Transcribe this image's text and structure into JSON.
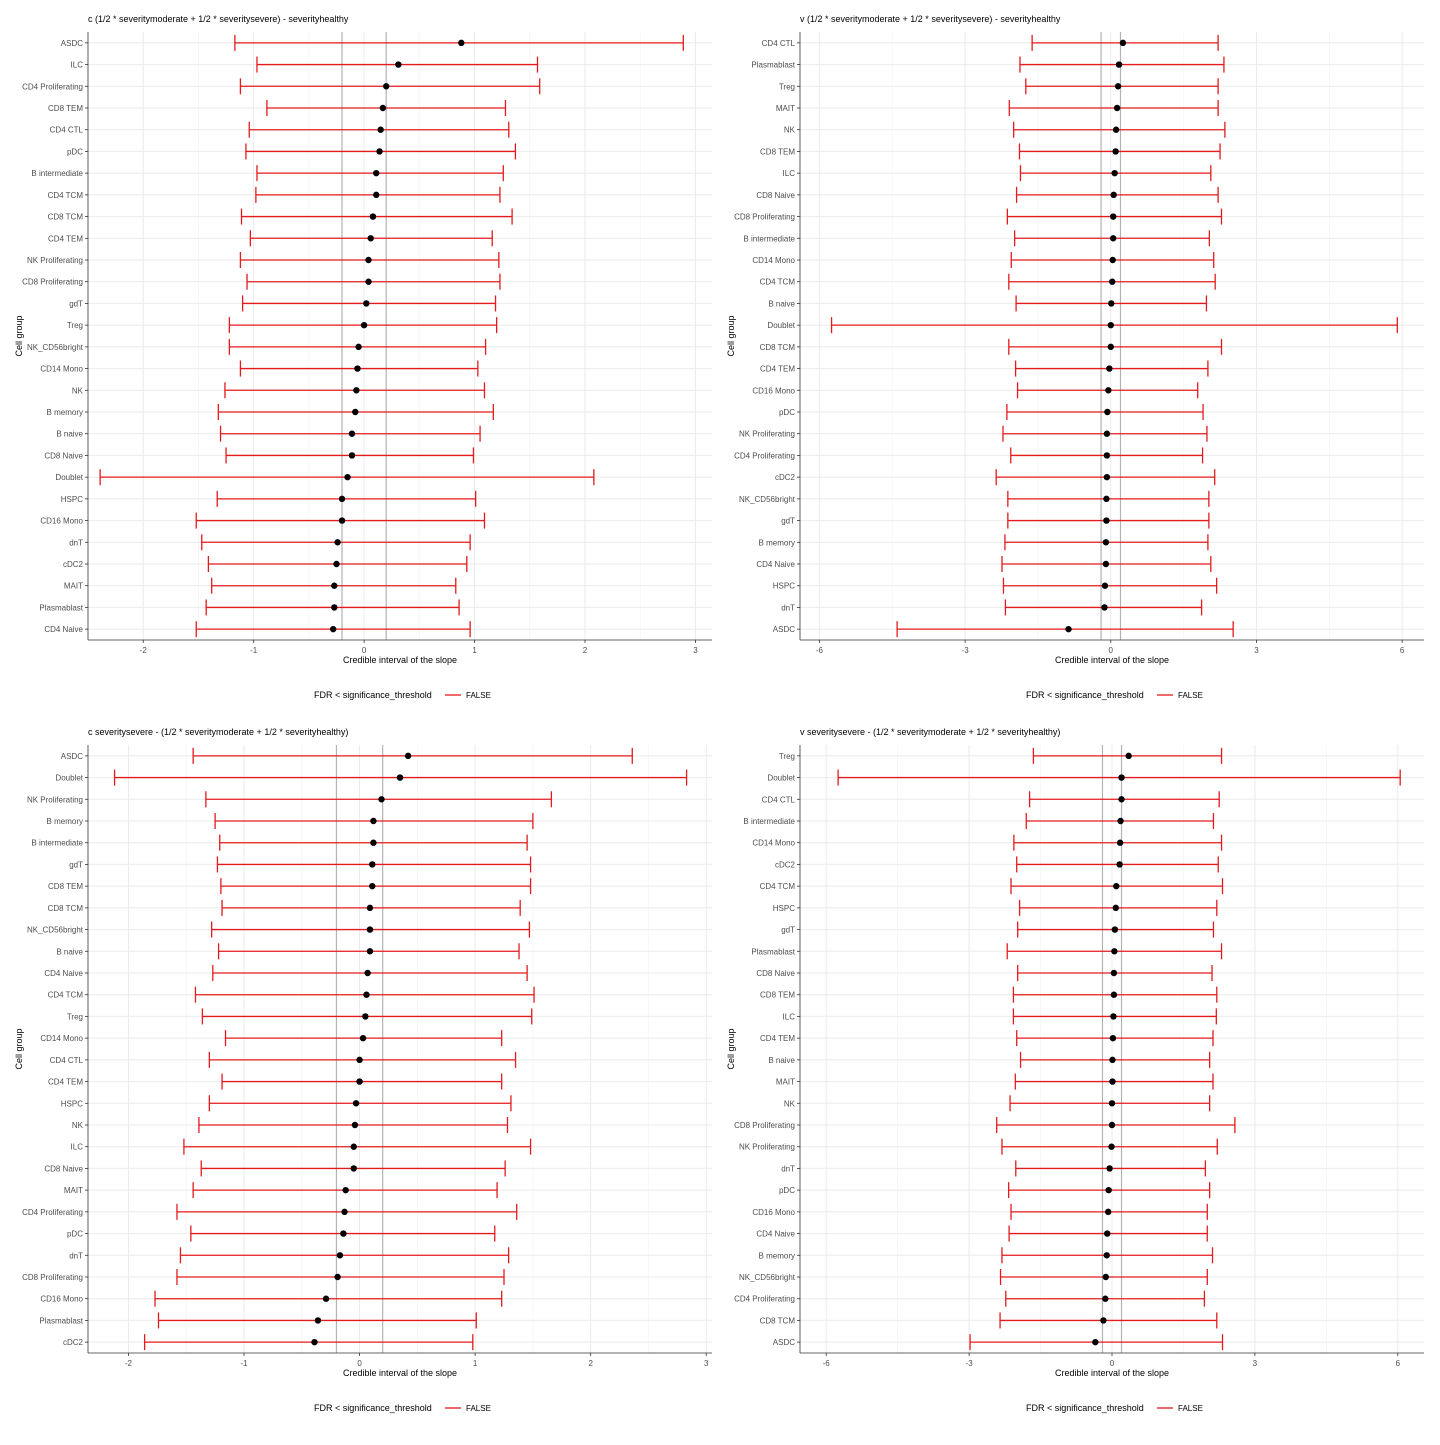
{
  "chart_data": [
    {
      "type": "errorbar",
      "title": "c (1/2 * severitymoderate + 1/2 * severitysevere) - severityhealthy",
      "xlabel": "Credible interval of the slope",
      "ylabel": "Cell group",
      "xlim": [
        -2.5,
        3.15
      ],
      "xticks": [
        -2,
        -1,
        0,
        1,
        2,
        3
      ],
      "vlines": [
        -0.2,
        0.2
      ],
      "grid": true,
      "legend": {
        "title": "FDR < significance_threshold",
        "entries": [
          {
            "label": "FALSE",
            "color": "#e41a1c"
          }
        ],
        "position": "bottom"
      },
      "categories": [
        "ASDC",
        "ILC",
        "CD4 Proliferating",
        "CD8 TEM",
        "CD4 CTL",
        "pDC",
        "B intermediate",
        "CD4 TCM",
        "CD8 TCM",
        "CD4 TEM",
        "NK Proliferating",
        "CD8 Proliferating",
        "gdT",
        "Treg",
        "NK_CD56bright",
        "CD14 Mono",
        "NK",
        "B memory",
        "B naive",
        "CD8 Naive",
        "Doublet",
        "HSPC",
        "CD16 Mono",
        "dnT",
        "cDC2",
        "MAIT",
        "Plasmablast",
        "CD4 Naive"
      ],
      "estimate": [
        0.88,
        0.31,
        0.2,
        0.17,
        0.15,
        0.14,
        0.11,
        0.11,
        0.08,
        0.06,
        0.04,
        0.04,
        0.02,
        0.0,
        -0.05,
        -0.06,
        -0.07,
        -0.08,
        -0.11,
        -0.11,
        -0.15,
        -0.2,
        -0.2,
        -0.24,
        -0.25,
        -0.27,
        -0.27,
        -0.28
      ],
      "lower": [
        -1.17,
        -0.97,
        -1.12,
        -0.88,
        -1.04,
        -1.07,
        -0.97,
        -0.98,
        -1.11,
        -1.03,
        -1.12,
        -1.06,
        -1.1,
        -1.22,
        -1.22,
        -1.12,
        -1.26,
        -1.32,
        -1.3,
        -1.25,
        -2.39,
        -1.33,
        -1.52,
        -1.47,
        -1.41,
        -1.38,
        -1.43,
        -1.52
      ],
      "upper": [
        2.89,
        1.57,
        1.59,
        1.28,
        1.31,
        1.37,
        1.26,
        1.23,
        1.34,
        1.16,
        1.22,
        1.23,
        1.19,
        1.2,
        1.1,
        1.03,
        1.09,
        1.17,
        1.05,
        0.99,
        2.08,
        1.01,
        1.09,
        0.96,
        0.93,
        0.83,
        0.86,
        0.96
      ]
    },
    {
      "type": "errorbar",
      "title": "v (1/2 * severitymoderate + 1/2 * severitysevere) - severityhealthy",
      "xlabel": "Credible interval of the slope",
      "ylabel": "Cell group",
      "xlim": [
        -6.4,
        6.45
      ],
      "xticks": [
        -6,
        -3,
        0,
        3,
        6
      ],
      "vlines": [
        -0.2,
        0.2
      ],
      "grid": true,
      "legend": {
        "title": "FDR < significance_threshold",
        "entries": [
          {
            "label": "FALSE",
            "color": "#e41a1c"
          }
        ],
        "position": "bottom"
      },
      "categories": [
        "CD4 CTL",
        "Plasmablast",
        "Treg",
        "MAIT",
        "NK",
        "CD8 TEM",
        "ILC",
        "CD8 Naive",
        "CD8 Proliferating",
        "B intermediate",
        "CD14 Mono",
        "CD4 TCM",
        "B naive",
        "Doublet",
        "CD8 TCM",
        "CD4 TEM",
        "CD16 Mono",
        "pDC",
        "NK Proliferating",
        "CD4 Proliferating",
        "cDC2",
        "NK_CD56bright",
        "gdT",
        "B memory",
        "CD4 Naive",
        "HSPC",
        "dnT",
        "ASDC"
      ],
      "estimate": [
        0.25,
        0.17,
        0.15,
        0.13,
        0.11,
        0.1,
        0.08,
        0.06,
        0.05,
        0.05,
        0.04,
        0.03,
        0.01,
        0.0,
        0.0,
        -0.03,
        -0.05,
        -0.07,
        -0.08,
        -0.08,
        -0.08,
        -0.09,
        -0.09,
        -0.1,
        -0.1,
        -0.12,
        -0.13,
        -0.87
      ],
      "lower": [
        -1.62,
        -1.87,
        -1.75,
        -2.09,
        -2.0,
        -1.88,
        -1.86,
        -1.94,
        -2.13,
        -1.98,
        -2.05,
        -2.1,
        -1.95,
        -5.75,
        -2.1,
        -1.96,
        -1.92,
        -2.14,
        -2.22,
        -2.06,
        -2.36,
        -2.12,
        -2.12,
        -2.18,
        -2.24,
        -2.21,
        -2.17,
        -4.4
      ],
      "upper": [
        2.21,
        2.33,
        2.21,
        2.21,
        2.35,
        2.25,
        2.06,
        2.21,
        2.28,
        2.03,
        2.12,
        2.15,
        1.97,
        5.9,
        2.28,
        2.0,
        1.79,
        1.9,
        1.98,
        1.89,
        2.14,
        2.02,
        2.02,
        2.0,
        2.06,
        2.18,
        1.87,
        2.52
      ]
    },
    {
      "type": "errorbar",
      "title": "c severitysevere - (1/2 * severitymoderate + 1/2 * severityhealthy)",
      "xlabel": "Credible interval of the slope",
      "ylabel": "Cell group",
      "xlim": [
        -2.35,
        3.05
      ],
      "xticks": [
        -2,
        -1,
        0,
        1,
        2,
        3
      ],
      "vlines": [
        -0.2,
        0.2
      ],
      "grid": true,
      "legend": {
        "title": "FDR < significance_threshold",
        "entries": [
          {
            "label": "FALSE",
            "color": "#e41a1c"
          }
        ],
        "position": "bottom"
      },
      "categories": [
        "ASDC",
        "Doublet",
        "NK Proliferating",
        "B memory",
        "B intermediate",
        "gdT",
        "CD8 TEM",
        "CD8 TCM",
        "NK_CD56bright",
        "B naive",
        "CD4 Naive",
        "CD4 TCM",
        "Treg",
        "CD14 Mono",
        "CD4 CTL",
        "CD4 TEM",
        "HSPC",
        "NK",
        "ILC",
        "CD8 Naive",
        "MAIT",
        "CD4 Proliferating",
        "pDC",
        "dnT",
        "CD8 Proliferating",
        "CD16 Mono",
        "Plasmablast",
        "cDC2"
      ],
      "estimate": [
        0.42,
        0.35,
        0.19,
        0.12,
        0.12,
        0.11,
        0.11,
        0.09,
        0.09,
        0.09,
        0.07,
        0.06,
        0.05,
        0.03,
        0.0,
        0.0,
        -0.03,
        -0.04,
        -0.05,
        -0.05,
        -0.12,
        -0.13,
        -0.14,
        -0.17,
        -0.19,
        -0.29,
        -0.36,
        -0.39
      ],
      "lower": [
        -1.44,
        -2.12,
        -1.33,
        -1.25,
        -1.21,
        -1.23,
        -1.2,
        -1.19,
        -1.28,
        -1.22,
        -1.27,
        -1.42,
        -1.36,
        -1.16,
        -1.3,
        -1.19,
        -1.3,
        -1.39,
        -1.52,
        -1.37,
        -1.44,
        -1.58,
        -1.46,
        -1.55,
        -1.58,
        -1.77,
        -1.74,
        -1.86
      ],
      "upper": [
        2.36,
        2.83,
        1.66,
        1.5,
        1.45,
        1.48,
        1.48,
        1.39,
        1.47,
        1.38,
        1.45,
        1.51,
        1.49,
        1.23,
        1.35,
        1.23,
        1.31,
        1.28,
        1.48,
        1.26,
        1.19,
        1.36,
        1.17,
        1.29,
        1.25,
        1.23,
        1.01,
        0.98
      ]
    },
    {
      "type": "errorbar",
      "title": "v severitysevere - (1/2 * severitymoderate + 1/2 * severityhealthy)",
      "xlabel": "Credible interval of the slope",
      "ylabel": "Cell group",
      "xlim": [
        -6.55,
        6.55
      ],
      "xticks": [
        -6,
        -3,
        0,
        3,
        6
      ],
      "vlines": [
        -0.2,
        0.2
      ],
      "grid": true,
      "legend": {
        "title": "FDR < significance_threshold",
        "entries": [
          {
            "label": "FALSE",
            "color": "#e41a1c"
          }
        ],
        "position": "bottom"
      },
      "categories": [
        "Treg",
        "Doublet",
        "CD4 CTL",
        "B intermediate",
        "CD14 Mono",
        "cDC2",
        "CD4 TCM",
        "HSPC",
        "gdT",
        "Plasmablast",
        "CD8 Naive",
        "CD8 TEM",
        "ILC",
        "CD4 TEM",
        "B naive",
        "MAIT",
        "NK",
        "CD8 Proliferating",
        "NK Proliferating",
        "dnT",
        "pDC",
        "CD16 Mono",
        "CD4 Naive",
        "B memory",
        "NK_CD56bright",
        "CD4 Proliferating",
        "CD8 TCM",
        "ASDC"
      ],
      "estimate": [
        0.35,
        0.2,
        0.2,
        0.18,
        0.17,
        0.16,
        0.09,
        0.08,
        0.06,
        0.05,
        0.04,
        0.04,
        0.03,
        0.02,
        0.01,
        0.01,
        0.0,
        0.0,
        -0.01,
        -0.05,
        -0.07,
        -0.08,
        -0.1,
        -0.11,
        -0.13,
        -0.14,
        -0.18,
        -0.35
      ],
      "lower": [
        -1.65,
        -5.75,
        -1.73,
        -1.8,
        -2.06,
        -2.0,
        -2.12,
        -1.94,
        -1.98,
        -2.2,
        -1.98,
        -2.07,
        -2.07,
        -2.0,
        -1.92,
        -2.03,
        -2.14,
        -2.42,
        -2.31,
        -2.02,
        -2.17,
        -2.12,
        -2.16,
        -2.31,
        -2.34,
        -2.23,
        -2.35,
        -2.98
      ],
      "upper": [
        2.3,
        6.05,
        2.25,
        2.13,
        2.3,
        2.23,
        2.32,
        2.2,
        2.13,
        2.3,
        2.1,
        2.2,
        2.19,
        2.12,
        2.05,
        2.12,
        2.05,
        2.58,
        2.21,
        1.96,
        2.05,
        2.0,
        2.0,
        2.11,
        2.0,
        1.94,
        2.2,
        2.32
      ]
    }
  ]
}
